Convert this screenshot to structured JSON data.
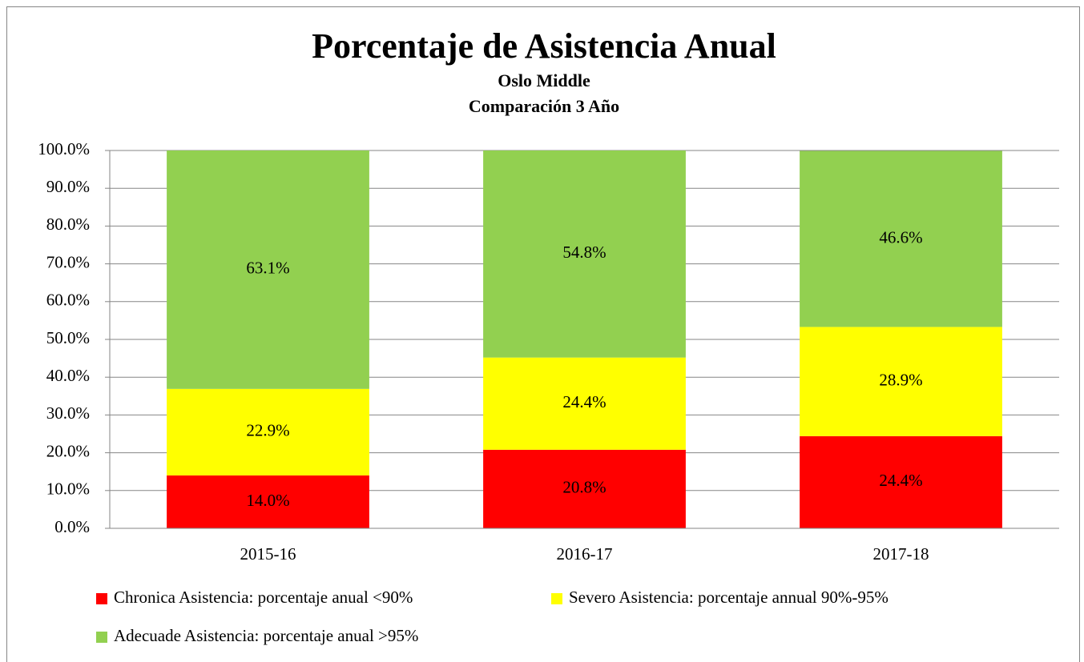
{
  "chart_data": {
    "type": "stacked_bar",
    "title": "Porcentaje de Asistencia Anual",
    "subtitle": [
      "Oslo Middle",
      "Comparación 3 Año"
    ],
    "categories": [
      "2015-16",
      "2016-17",
      "2017-18"
    ],
    "series": [
      {
        "name": "Chronica Asistencia: porcentaje anual <90%",
        "color": "#ff0000",
        "values": [
          14.0,
          20.8,
          24.4
        ],
        "value_labels": [
          "14.0%",
          "20.8%",
          "24.4%"
        ]
      },
      {
        "name": "Severo Asistencia: porcentaje annual 90%-95%",
        "color": "#ffff00",
        "values": [
          22.9,
          24.4,
          28.9
        ],
        "value_labels": [
          "22.9%",
          "24.4%",
          "28.9%"
        ]
      },
      {
        "name": "Adecuade Asistencia: porcentaje anual >95%",
        "color": "#92d050",
        "values": [
          63.1,
          54.8,
          46.6
        ],
        "value_labels": [
          "63.1%",
          "54.8%",
          "46.6%"
        ]
      }
    ],
    "ylim": [
      0,
      100
    ],
    "yticks": [
      {
        "value": 0,
        "label": "0.0%"
      },
      {
        "value": 10,
        "label": "10.0%"
      },
      {
        "value": 20,
        "label": "20.0%"
      },
      {
        "value": 30,
        "label": "30.0%"
      },
      {
        "value": 40,
        "label": "40.0%"
      },
      {
        "value": 50,
        "label": "50.0%"
      },
      {
        "value": 60,
        "label": "60.0%"
      },
      {
        "value": 70,
        "label": "70.0%"
      },
      {
        "value": 80,
        "label": "80.0%"
      },
      {
        "value": 90,
        "label": "90.0%"
      },
      {
        "value": 100,
        "label": "100.0%"
      }
    ],
    "grid": true,
    "legend": "bottom"
  }
}
